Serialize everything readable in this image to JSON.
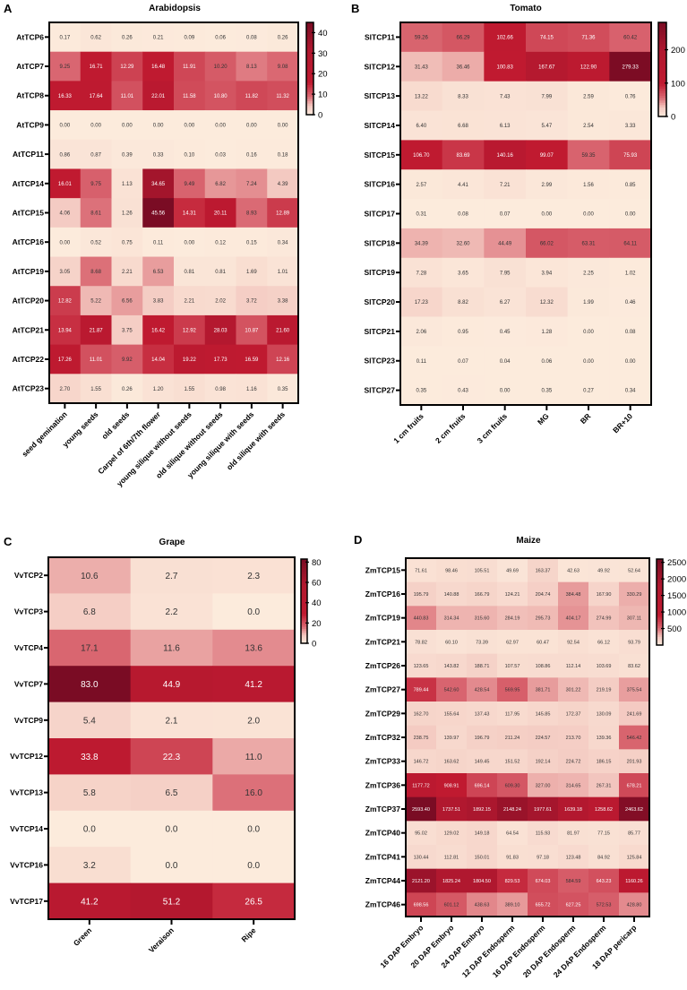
{
  "chart_data": [
    {
      "type": "heatmap",
      "panel_letter": "A",
      "title": "Arabidopsis",
      "value_decimals": 2,
      "range": [
        0,
        45
      ],
      "colorbar_ticks": [
        0,
        10,
        20,
        30,
        40
      ],
      "rows": [
        "AtTCP6",
        "AtTCP7",
        "AtTCP8",
        "AtTCP9",
        "AtTCP11",
        "AtTCP14",
        "AtTCP15",
        "AtTCP16",
        "AtTCP19",
        "AtTCP20",
        "AtTCP21",
        "AtTCP22",
        "AtTCP23"
      ],
      "columns": [
        "seed gemination",
        "young seeds",
        "old seeds",
        "Carpel of 6th/7th flower",
        "young silique without seeds",
        "old silique without seeds",
        "young silique with seeds",
        "old silique with seeds"
      ],
      "values": [
        [
          0.17,
          0.62,
          0.26,
          0.21,
          0.09,
          0.06,
          0.08,
          0.26
        ],
        [
          9.25,
          16.71,
          12.29,
          16.48,
          11.91,
          10.2,
          8.13,
          9.08
        ],
        [
          16.33,
          17.64,
          11.01,
          22.01,
          11.58,
          10.8,
          11.82,
          11.32
        ],
        [
          0.0,
          0.0,
          0.0,
          0.0,
          0.0,
          0.0,
          0.0,
          0.0
        ],
        [
          0.86,
          0.87,
          0.39,
          0.33,
          0.1,
          0.03,
          0.16,
          0.18
        ],
        [
          16.01,
          9.75,
          1.13,
          34.65,
          9.49,
          6.82,
          7.24,
          4.39
        ],
        [
          4.06,
          8.61,
          1.26,
          45.56,
          14.31,
          20.11,
          8.93,
          12.89
        ],
        [
          0.0,
          0.52,
          0.75,
          0.11,
          0.0,
          0.12,
          0.15,
          0.34
        ],
        [
          3.05,
          8.68,
          2.21,
          6.53,
          0.81,
          0.81,
          1.69,
          1.01
        ],
        [
          12.82,
          5.22,
          6.56,
          3.83,
          2.21,
          2.02,
          3.72,
          3.38
        ],
        [
          13.94,
          21.87,
          3.75,
          16.42,
          12.92,
          28.03,
          10.87,
          21.6
        ],
        [
          17.26,
          11.01,
          9.92,
          14.04,
          19.22,
          17.73,
          16.59,
          12.16
        ],
        [
          2.7,
          1.55,
          0.26,
          1.2,
          1.55,
          0.98,
          1.16,
          0.35
        ]
      ]
    },
    {
      "type": "heatmap",
      "panel_letter": "B",
      "title": "Tomato",
      "value_decimals": 2,
      "range": [
        0,
        282
      ],
      "colorbar_ticks": [
        0,
        100,
        200
      ],
      "rows": [
        "SlTCP11",
        "SlTCP12",
        "SlTCP13",
        "SlTCP14",
        "SlTCP15",
        "SlTCP16",
        "SlTCP17",
        "SlTCP18",
        "SlTCP19",
        "SlTCP20",
        "SlTCP21",
        "SlTCP23",
        "SlTCP27"
      ],
      "columns": [
        "1 cm fruits",
        "2 cm fruits",
        "3 cm fruits",
        "MG",
        "BR",
        "BR+10"
      ],
      "values": [
        [
          59.26,
          66.29,
          102.66,
          74.15,
          71.36,
          60.42
        ],
        [
          31.43,
          36.46,
          100.83,
          167.67,
          122.9,
          279.33
        ],
        [
          13.22,
          8.33,
          7.43,
          7.99,
          2.59,
          0.76
        ],
        [
          6.4,
          6.68,
          6.13,
          5.47,
          2.54,
          3.33
        ],
        [
          106.7,
          83.69,
          140.16,
          99.07,
          59.35,
          75.93
        ],
        [
          2.57,
          4.41,
          7.21,
          2.99,
          1.56,
          0.85
        ],
        [
          0.31,
          0.08,
          0.07,
          0.0,
          0.0,
          0.0
        ],
        [
          34.39,
          32.6,
          44.49,
          66.02,
          63.31,
          64.11
        ],
        [
          7.28,
          3.65,
          7.95,
          3.94,
          2.25,
          1.02
        ],
        [
          17.23,
          8.82,
          6.27,
          12.32,
          1.99,
          0.46
        ],
        [
          2.06,
          0.95,
          0.45,
          1.28,
          0.0,
          0.08
        ],
        [
          0.11,
          0.07,
          0.04,
          0.06,
          0.0,
          0.0
        ],
        [
          0.35,
          0.43,
          0.0,
          0.35,
          0.27,
          0.34
        ]
      ]
    },
    {
      "type": "heatmap",
      "panel_letter": "C",
      "title": "Grape",
      "value_decimals": 1,
      "range": [
        0,
        83
      ],
      "colorbar_ticks": [
        0,
        20,
        40,
        60,
        80
      ],
      "rows": [
        "VvTCP2",
        "VvTCP3",
        "VvTCP4",
        "VvTCP7",
        "VvTCP9",
        "VvTCP12",
        "VvTCP13",
        "VvTCP14",
        "VvTCP16",
        "VvTCP17"
      ],
      "columns": [
        "Green",
        "Veraison",
        "Ripe"
      ],
      "values": [
        [
          10.6,
          2.7,
          2.3
        ],
        [
          6.8,
          2.2,
          0.0
        ],
        [
          17.1,
          11.6,
          13.6
        ],
        [
          83.0,
          44.9,
          41.2
        ],
        [
          5.4,
          2.1,
          2.0
        ],
        [
          33.8,
          22.3,
          11.0
        ],
        [
          5.8,
          6.5,
          16.0
        ],
        [
          0.0,
          0.0,
          0.0
        ],
        [
          3.2,
          0.0,
          0.0
        ],
        [
          41.2,
          51.2,
          26.5
        ]
      ]
    },
    {
      "type": "heatmap",
      "panel_letter": "D",
      "title": "Maize",
      "value_decimals": 2,
      "range": [
        0,
        2600
      ],
      "colorbar_ticks": [
        500,
        1000,
        1500,
        2000,
        2500
      ],
      "rows": [
        "ZmTCP15",
        "ZmTCP16",
        "ZmTCP19",
        "ZmTCP21",
        "ZmTCP26",
        "ZmTCP27",
        "ZmTCP29",
        "ZmTCP32",
        "ZmTCP33",
        "ZmTCP36",
        "ZmTCP37",
        "ZmTCP40",
        "ZmTCP41",
        "ZmTCP44",
        "ZmTCP46"
      ],
      "columns": [
        "16 DAP Embryo",
        "20 DAP Embryo",
        "24 DAP Embryo",
        "12 DAP Endosperm",
        "16 DAP Endosperm",
        "20 DAP Endosperm",
        "24 DAP Endosperm",
        "18 DAP pericarp"
      ],
      "values": [
        [
          71.61,
          98.46,
          105.51,
          49.69,
          163.37,
          42.63,
          49.92,
          52.64
        ],
        [
          195.79,
          140.88,
          166.79,
          124.21,
          204.74,
          384.48,
          167.9,
          330.29
        ],
        [
          440.83,
          314.34,
          315.6,
          284.19,
          295.73,
          404.17,
          274.99,
          307.11
        ],
        [
          78.82,
          60.1,
          73.39,
          62.97,
          60.47,
          92.54,
          66.12,
          93.79
        ],
        [
          123.65,
          143.82,
          188.71,
          107.57,
          108.86,
          112.14,
          103.69,
          83.62
        ],
        [
          789.44,
          542.6,
          428.54,
          569.95,
          381.71,
          301.22,
          219.19,
          375.54
        ],
        [
          162.7,
          155.64,
          137.43,
          117.95,
          145.85,
          172.37,
          130.09,
          241.69
        ],
        [
          238.75,
          139.97,
          196.79,
          211.24,
          224.57,
          213.7,
          139.36,
          546.42
        ],
        [
          146.72,
          163.62,
          149.45,
          151.52,
          192.14,
          224.72,
          186.15,
          201.93
        ],
        [
          1177.72,
          908.91,
          696.14,
          609.3,
          327.0,
          314.65,
          267.31,
          678.21
        ],
        [
          2593.4,
          1737.51,
          1892.15,
          2148.24,
          1977.61,
          1639.18,
          1258.62,
          2463.62
        ],
        [
          95.02,
          129.02,
          149.18,
          64.54,
          115.93,
          81.97,
          77.15,
          85.77
        ],
        [
          130.44,
          112.81,
          150.01,
          91.83,
          97.18,
          123.48,
          84.92,
          125.84
        ],
        [
          2121.2,
          1825.24,
          1804.5,
          829.53,
          674.03,
          584.59,
          643.23,
          1160.26
        ],
        [
          698.56,
          601.12,
          438.63,
          389.1,
          655.72,
          627.25,
          572.53,
          428.8
        ]
      ]
    }
  ],
  "colors": {
    "low": "#fcebdc",
    "mid": "#c01a30",
    "high": "#7a0c24"
  }
}
